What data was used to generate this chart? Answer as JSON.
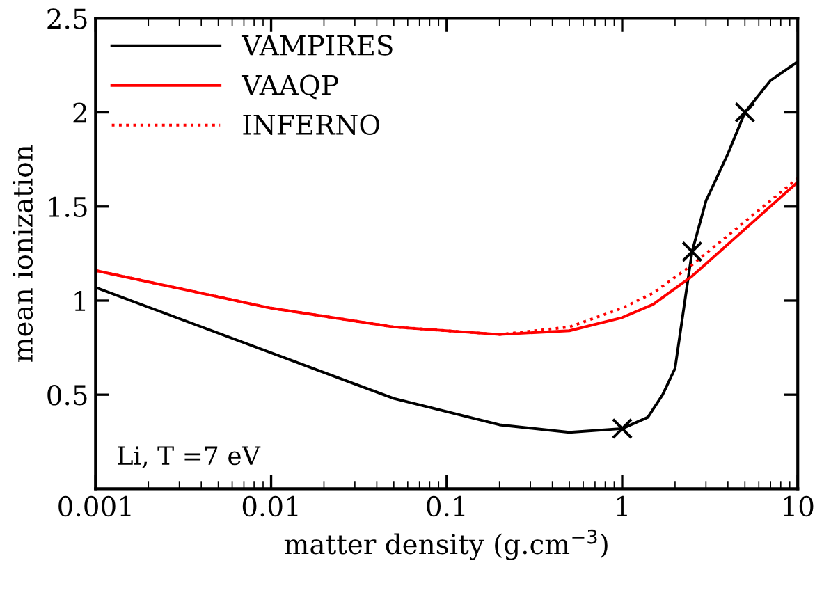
{
  "chart_data": {
    "type": "line",
    "xlabel": "matter density (g.cm$^{−3}$)",
    "ylabel": "mean ionization",
    "log": "x",
    "xlim": [
      0.001,
      10
    ],
    "xticks": [
      {
        "value": 0.001,
        "label": "0.001"
      },
      {
        "value": 0.01,
        "label": "0.01"
      },
      {
        "value": 0.1,
        "label": "0.1"
      },
      1,
      10
    ],
    "ylim": [
      0,
      2.5
    ],
    "yticks": [
      0.5,
      1,
      1.5,
      2,
      2.5
    ],
    "legend": "top left",
    "grid": false,
    "series": [
      {
        "name": "VAMPIRES",
        "color": "#000000",
        "line_style": "solid",
        "x": [
          0.001,
          0.05,
          0.2,
          0.5,
          1,
          1.4,
          1.7,
          2.0,
          2.3,
          2.5,
          3,
          4,
          5,
          7,
          10
        ],
        "values": [
          1.07,
          0.48,
          0.34,
          0.3,
          0.32,
          0.38,
          0.5,
          0.64,
          1.03,
          1.26,
          1.53,
          1.78,
          2.0,
          2.17,
          2.27
        ]
      },
      {
        "name": "VAAQP",
        "color": "#ff0000",
        "line_style": "solid",
        "x": [
          0.001,
          0.01,
          0.05,
          0.2,
          0.5,
          1,
          1.5,
          2.5,
          5,
          10
        ],
        "values": [
          1.16,
          0.96,
          0.86,
          0.82,
          0.84,
          0.91,
          0.98,
          1.13,
          1.38,
          1.63
        ]
      },
      {
        "name": "INFERNO",
        "color": "#ff0000",
        "line_style": "dotted",
        "x": [
          0.001,
          0.01,
          0.05,
          0.2,
          0.5,
          1,
          1.5,
          2.5,
          5,
          10
        ],
        "values": [
          1.16,
          0.96,
          0.86,
          0.82,
          0.86,
          0.96,
          1.04,
          1.19,
          1.42,
          1.65
        ]
      },
      {
        "type": "scatter",
        "color": "#000000",
        "marker": "cross",
        "x": [
          1,
          2.5,
          5
        ],
        "values": [
          0.32,
          1.26,
          2.0
        ]
      }
    ],
    "annotations": [
      "Li, T =7 eV"
    ]
  }
}
